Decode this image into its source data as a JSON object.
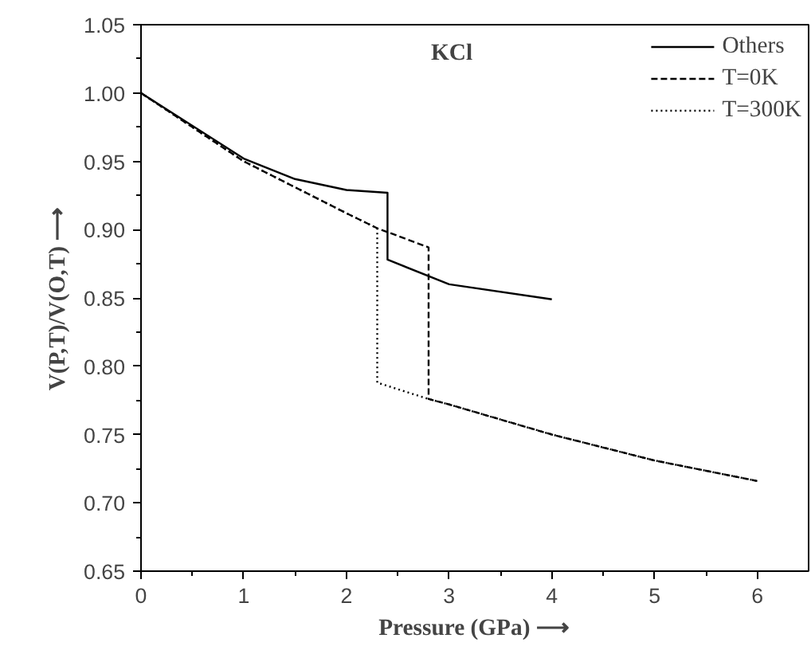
{
  "chart_data": {
    "type": "line",
    "xlabel": "Pressure (GPa) ⟶",
    "ylabel": "V(P,T)/V(O,T) ⟶",
    "annotations": [
      "KCl"
    ],
    "xlim": [
      0,
      6.5
    ],
    "ylim": [
      0.65,
      1.05
    ],
    "xticks": [
      0,
      1,
      2,
      3,
      4,
      5,
      6
    ],
    "yticks": [
      {
        "value": 0.65,
        "label": "0.65"
      },
      {
        "value": 0.7,
        "label": "0.70"
      },
      {
        "value": 0.75,
        "label": "0.75"
      },
      {
        "value": 0.8,
        "label": "0.80"
      },
      {
        "value": 0.85,
        "label": "0.85"
      },
      {
        "value": 0.9,
        "label": "0.90"
      },
      {
        "value": 0.95,
        "label": "0.95"
      },
      {
        "value": 1.0,
        "label": "1.00"
      },
      {
        "value": 1.05,
        "label": "1.05"
      }
    ],
    "grid": false,
    "legend": "top right",
    "series": [
      {
        "name": "Others",
        "color": "#000000",
        "line_style": "solid",
        "x": [
          0,
          1,
          1.5,
          2,
          2.4,
          2.4,
          3,
          4
        ],
        "values": [
          1.0,
          0.952,
          0.937,
          0.929,
          0.927,
          0.878,
          0.86,
          0.849
        ]
      },
      {
        "name": "T=0K",
        "color": "#000000",
        "line_style": "dashed",
        "x": [
          0,
          1,
          2,
          2.3,
          2.8,
          2.8,
          3,
          4,
          5,
          6
        ],
        "values": [
          1.0,
          0.95,
          0.912,
          0.901,
          0.887,
          0.776,
          0.772,
          0.75,
          0.731,
          0.716
        ]
      },
      {
        "name": "T=300K",
        "color": "#000000",
        "line_style": "dotted",
        "x": [
          0,
          1,
          2,
          2.3,
          2.3,
          2.8,
          3,
          4,
          5,
          6
        ],
        "values": [
          1.0,
          0.95,
          0.912,
          0.901,
          0.788,
          0.776,
          0.772,
          0.75,
          0.731,
          0.716
        ]
      }
    ]
  }
}
